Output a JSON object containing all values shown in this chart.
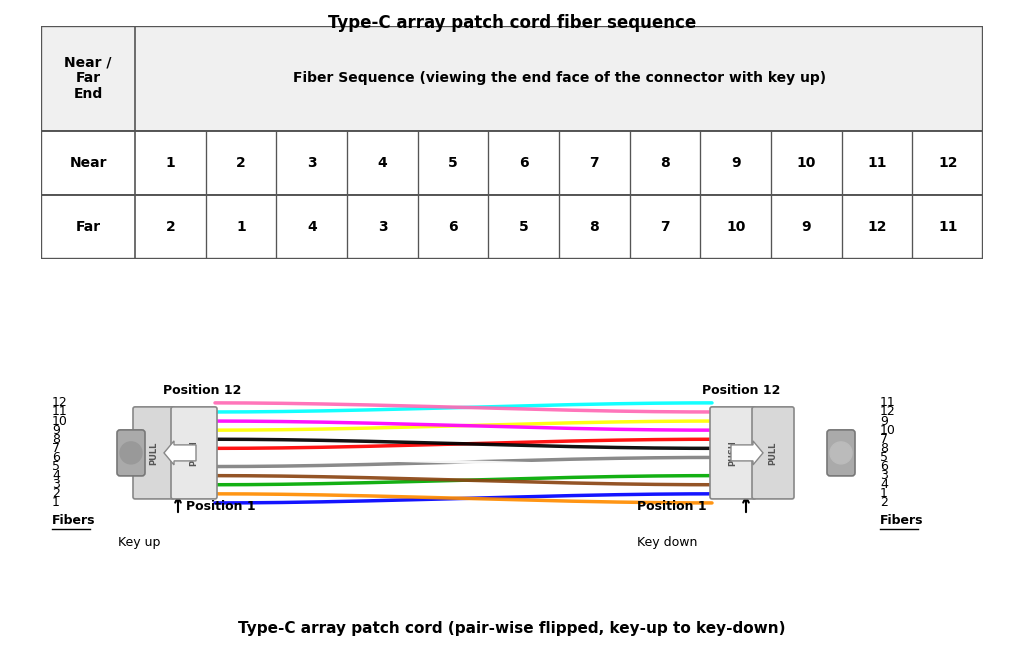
{
  "title_table": "Type-C array patch cord fiber sequence",
  "title_bottom": "Type-C array patch cord (pair-wise flipped, key-up to key-down)",
  "table_header_col1": "Near /\nFar\nEnd",
  "table_header_col2": "Fiber Sequence (viewing the end face of the connector with key up)",
  "near_row_label": "Near",
  "far_row_label": "Far",
  "near_values": [
    1,
    2,
    3,
    4,
    5,
    6,
    7,
    8,
    9,
    10,
    11,
    12
  ],
  "far_values": [
    2,
    1,
    4,
    3,
    6,
    5,
    8,
    7,
    10,
    9,
    12,
    11
  ],
  "left_fibers_label": "Fibers",
  "right_fibers_label": "Fibers",
  "left_fibers": [
    1,
    2,
    3,
    4,
    5,
    6,
    7,
    8,
    9,
    10,
    11,
    12
  ],
  "right_fibers": [
    2,
    1,
    4,
    3,
    6,
    5,
    8,
    7,
    10,
    9,
    12,
    11
  ],
  "key_up_text": "Key up",
  "key_down_text": "Key down",
  "pos1_left": "Position 1",
  "pos12_left": "Position 12",
  "pos1_right": "Position 1",
  "pos12_right": "Position 12",
  "fiber_colors": [
    "#0000FF",
    "#FF8C00",
    "#00AA00",
    "#8B4513",
    "#808080",
    "#FFFFFF",
    "#FF0000",
    "#000000",
    "#FFFF00",
    "#FF00FF",
    "#00FFFF",
    "#FF69B4"
  ],
  "right_fiber_order": [
    1,
    0,
    3,
    2,
    5,
    4,
    7,
    6,
    9,
    8,
    11,
    10
  ],
  "bg_color": "#FFFFFF",
  "border_color": "#555555",
  "connector_color_pull": "#D8D8D8",
  "connector_color_push": "#E8E8E8",
  "ferrule_color": "#AAAAAA",
  "ferrule_edge": "#777777",
  "connector_edge": "#888888"
}
